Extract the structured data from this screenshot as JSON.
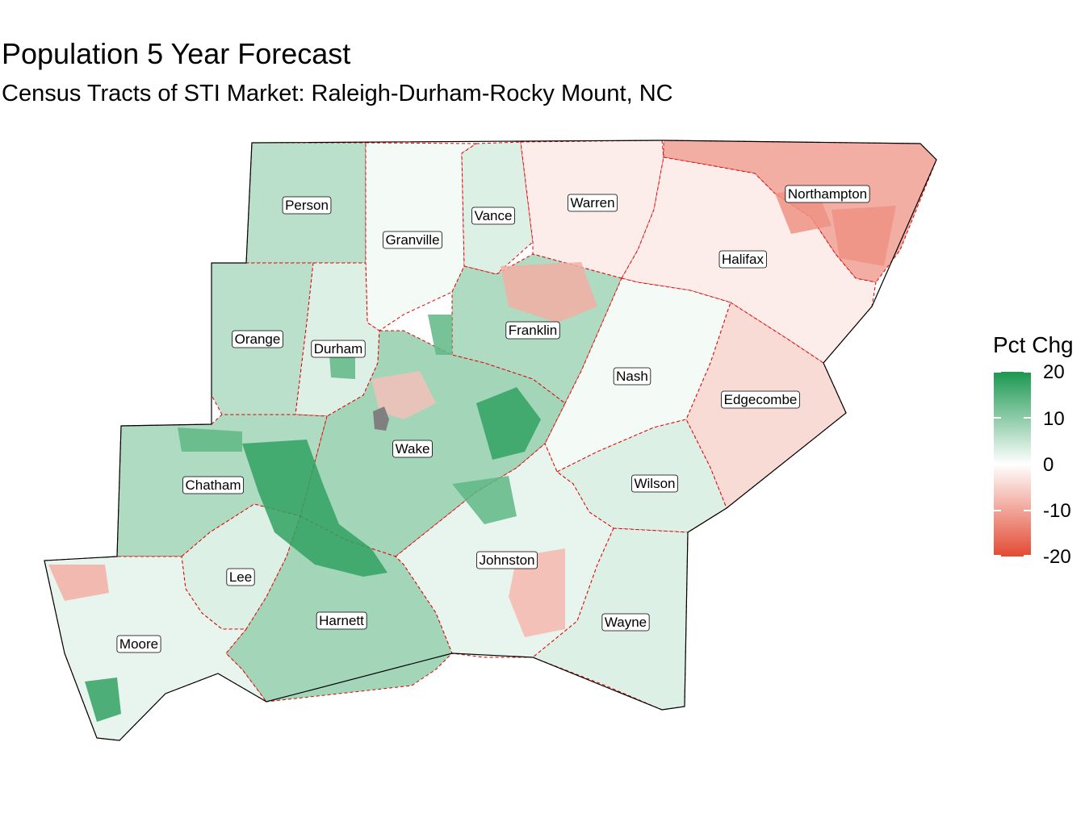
{
  "title": "Population 5 Year Forecast",
  "subtitle": "Census Tracts of STI Market: Raleigh-Durham-Rocky Mount, NC",
  "legend": {
    "title": "Pct Chg",
    "ticks": [
      "20",
      "10",
      "0",
      "-10",
      "-20"
    ],
    "colors": {
      "high": "#1a9850",
      "mid": "#ffffff",
      "low": "#e34a33",
      "missing": "#808080"
    },
    "range": [
      -20,
      20
    ]
  },
  "boundary_color": "#e00000",
  "counties": [
    {
      "name": "Person",
      "pct_chg": 6
    },
    {
      "name": "Granville",
      "pct_chg": 1
    },
    {
      "name": "Vance",
      "pct_chg": 3
    },
    {
      "name": "Warren",
      "pct_chg": -2
    },
    {
      "name": "Northampton",
      "pct_chg": -9
    },
    {
      "name": "Halifax",
      "pct_chg": -2
    },
    {
      "name": "Orange",
      "pct_chg": 6
    },
    {
      "name": "Durham",
      "pct_chg": 3
    },
    {
      "name": "Franklin",
      "pct_chg": 7
    },
    {
      "name": "Nash",
      "pct_chg": 1
    },
    {
      "name": "Edgecombe",
      "pct_chg": -4
    },
    {
      "name": "Wake",
      "pct_chg": 8
    },
    {
      "name": "Chatham",
      "pct_chg": 7
    },
    {
      "name": "Wilson",
      "pct_chg": 3
    },
    {
      "name": "Lee",
      "pct_chg": 3
    },
    {
      "name": "Johnston",
      "pct_chg": 2
    },
    {
      "name": "Harnett",
      "pct_chg": 8
    },
    {
      "name": "Wayne",
      "pct_chg": 3
    },
    {
      "name": "Moore",
      "pct_chg": 2
    }
  ]
}
